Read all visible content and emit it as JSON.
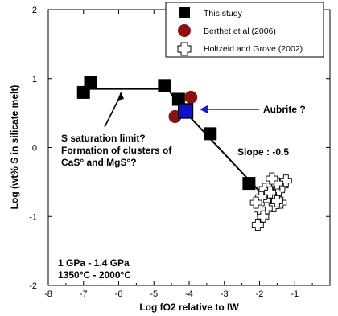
{
  "chart_data": {
    "type": "scatter",
    "xlabel": "Log fO2 relative to IW",
    "ylabel": "Log (wt% S in silicate melt)",
    "xlim": [
      -8,
      0
    ],
    "ylim": [
      -2,
      2
    ],
    "x_ticks": [
      "-8",
      "-7",
      "-6",
      "-5",
      "-4",
      "-3",
      "-2",
      "-1"
    ],
    "y_ticks": [
      "-2",
      "-1",
      "0",
      "1",
      "2"
    ],
    "legend": {
      "placement": "top-right"
    },
    "colors": {
      "this_study": "#000000",
      "berthet": "#8b1010",
      "aubrite": "#1010c8",
      "aubrite_text": "#1a1acc"
    },
    "series": [
      {
        "name": "This study",
        "marker": "square",
        "points": [
          {
            "x": -6.8,
            "y": 0.95
          },
          {
            "x": -7.0,
            "y": 0.8
          },
          {
            "x": -4.7,
            "y": 0.9
          },
          {
            "x": -4.3,
            "y": 0.7
          },
          {
            "x": -4.1,
            "y": 0.55
          },
          {
            "x": -3.4,
            "y": 0.2
          },
          {
            "x": -2.3,
            "y": -0.52
          }
        ]
      },
      {
        "name": "Berthet et al (2006)",
        "marker": "circle",
        "points": [
          {
            "x": -4.4,
            "y": 0.45
          },
          {
            "x": -3.95,
            "y": 0.73
          }
        ]
      },
      {
        "name": "Holtzeid and Grove (2002)",
        "marker": "open-cross",
        "points": [
          {
            "x": -1.85,
            "y": -0.6
          },
          {
            "x": -1.75,
            "y": -0.72
          },
          {
            "x": -1.65,
            "y": -0.55
          },
          {
            "x": -1.55,
            "y": -0.7
          },
          {
            "x": -1.45,
            "y": -0.62
          },
          {
            "x": -1.35,
            "y": -0.55
          },
          {
            "x": -1.25,
            "y": -0.48
          },
          {
            "x": -1.4,
            "y": -0.8
          },
          {
            "x": -1.6,
            "y": -0.85
          },
          {
            "x": -1.8,
            "y": -0.88
          },
          {
            "x": -1.95,
            "y": -0.72
          },
          {
            "x": -2.0,
            "y": -0.9
          },
          {
            "x": -2.1,
            "y": -0.8
          },
          {
            "x": -1.9,
            "y": -1.0
          },
          {
            "x": -2.05,
            "y": -1.12
          },
          {
            "x": -1.7,
            "y": -0.65
          },
          {
            "x": -1.5,
            "y": -0.52
          },
          {
            "x": -1.65,
            "y": -0.45
          },
          {
            "x": -1.5,
            "y": -0.78
          }
        ]
      }
    ],
    "aubrite_point": {
      "x": -4.1,
      "y": 0.53
    },
    "fit_line": [
      {
        "x": -7.1,
        "y": 0.85
      },
      {
        "x": -4.6,
        "y": 0.85
      },
      {
        "x": -4.3,
        "y": 0.62
      },
      {
        "x": -1.7,
        "y": -0.8
      }
    ],
    "annotations": {
      "s_saturation": [
        "S saturation limit?",
        "Formation of clusters of",
        "CaS° and MgS°?"
      ],
      "slope": "Slope : -0.5",
      "aubrite": "Aubrite ?",
      "conditions": [
        "1 GPa - 1.4 GPa",
        "1350°C - 2000°C"
      ]
    }
  }
}
